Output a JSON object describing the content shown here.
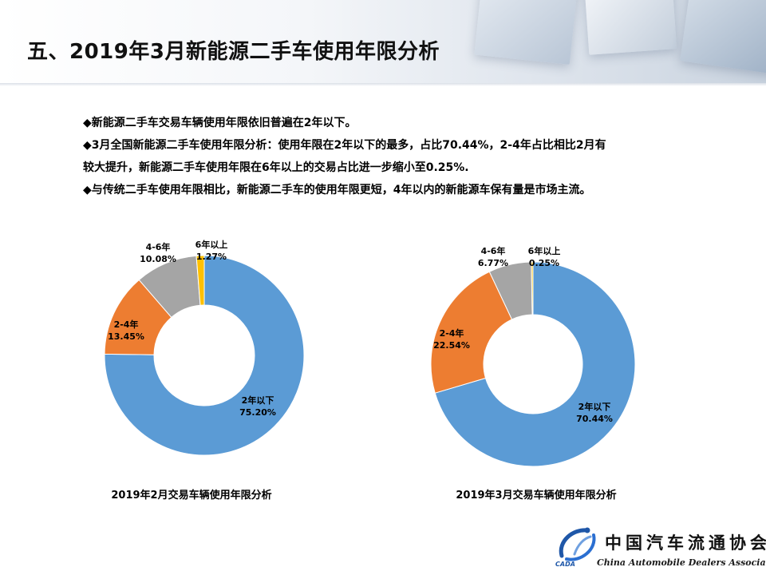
{
  "page": {
    "title": "五、2019年3月新能源二手车使用年限分析",
    "bullets": [
      "◆新能源二手车交易车辆使用年限依旧普遍在2年以下。",
      "◆3月全国新能源二手车使用年限分析：使用年限在2年以下的最多，占比70.44%，2-4年占比相比2月有",
      "较大提升，新能源二手车使用年限在6年以上的交易占比进一步缩小至0.25%.",
      "◆与传统二手车使用年限相比，新能源二手车的使用年限更短，4年以内的新能源车保有量是市场主流。"
    ]
  },
  "colors": {
    "2年以下": "#5b9bd5",
    "2-4年": "#ed7d31",
    "4-6年": "#a5a5a5",
    "6年以上": "#ffc000"
  },
  "chart_data": [
    {
      "type": "pie",
      "donut": true,
      "title": "2019年2月交易车辆使用年限分析",
      "categories": [
        "2年以下",
        "2-4年",
        "4-6年",
        "6年以上"
      ],
      "values": [
        75.2,
        13.45,
        10.08,
        1.27
      ],
      "value_labels": [
        "75.20%",
        "13.45%",
        "10.08%",
        "1.27%"
      ]
    },
    {
      "type": "pie",
      "donut": true,
      "title": "2019年3月交易车辆使用年限分析",
      "categories": [
        "2年以下",
        "2-4年",
        "4-6年",
        "6年以上"
      ],
      "values": [
        70.44,
        22.54,
        6.77,
        0.25
      ],
      "value_labels": [
        "70.44%",
        "22.54%",
        "6.77%",
        "0.25%"
      ]
    }
  ],
  "footer": {
    "org_name_cn": "中国汽车流通协会",
    "org_name_en": "China Automobile Dealers Association",
    "logo_abbr": "CADA"
  }
}
